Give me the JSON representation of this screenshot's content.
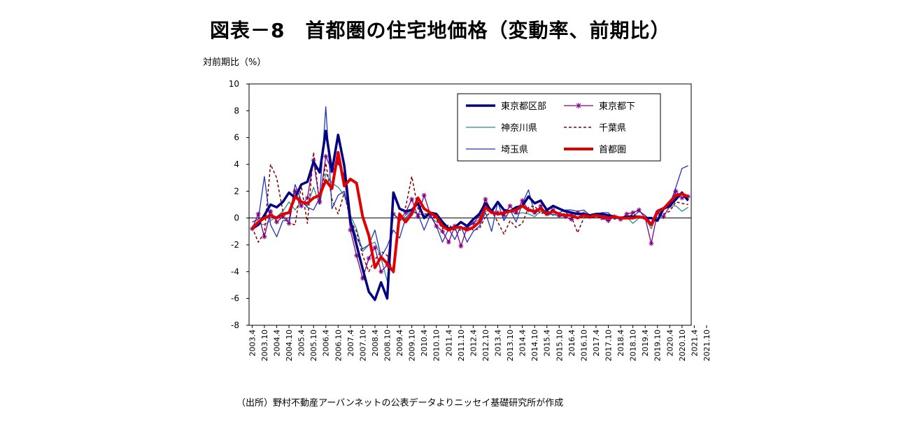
{
  "title": "図表－8　首都圏の住宅地価格（変動率、前期比）",
  "source": "（出所）野村不動産アーバンネットの公表データよりニッセイ基礎研究所が作成",
  "chart_data": {
    "type": "line",
    "ylabel": "対前期比（%）",
    "xlabel": "",
    "ylim": [
      -8,
      10
    ],
    "yticks": [
      10,
      8,
      6,
      4,
      2,
      0,
      -2,
      -4,
      -6,
      -8
    ],
    "x_tick_labels": [
      "2003.4",
      "2003.10",
      "2004.4",
      "2004.10",
      "2005.4",
      "2005.10",
      "2006.4",
      "2006.10",
      "2007.4",
      "2007.10",
      "2008.4",
      "2008.10",
      "2009.4",
      "2009.10",
      "2010.4",
      "2010.10",
      "2011.4",
      "2011.10",
      "2012.4",
      "2012.10",
      "2013.4",
      "2013.10",
      "2014.4",
      "2014.10",
      "2015.4",
      "2015.10",
      "2016.4",
      "2016.10",
      "2017.4",
      "2017.10",
      "2018.4",
      "2018.10",
      "2019.4",
      "2019.10",
      "2020.4",
      "2020.10",
      "2021.4",
      "2021.10"
    ],
    "x_start": "2003-04",
    "x_step_months": 3,
    "grid": false,
    "legend_position": "top-right",
    "series": [
      {
        "name": "東京都区部",
        "color": "#000080",
        "style": "thick",
        "values": [
          -0.8,
          -0.5,
          0.2,
          1.0,
          0.8,
          1.2,
          1.9,
          1.5,
          2.5,
          2.7,
          4.2,
          3.4,
          6.5,
          3.5,
          6.2,
          3.9,
          -0.2,
          -2.0,
          -3.8,
          -5.5,
          -6.1,
          -4.8,
          -6.0,
          1.9,
          0.7,
          0.5,
          0.6,
          1.1,
          0.0,
          0.4,
          0.3,
          -0.3,
          -0.8,
          -0.7,
          -0.3,
          -0.6,
          -0.1,
          0.3,
          1.1,
          0.5,
          1.2,
          0.6,
          0.5,
          0.8,
          0.9,
          1.6,
          1.1,
          1.3,
          0.6,
          0.9,
          0.7,
          0.5,
          0.4,
          0.3,
          0.3,
          0.2,
          0.3,
          0.3,
          0.2,
          0.1,
          0.0,
          0.1,
          0.1,
          0.1,
          0.0,
          0.0,
          -0.2,
          0.7,
          0.9,
          1.4,
          1.9,
          1.3
        ]
      },
      {
        "name": "東京都下",
        "color": "#800080",
        "style": "star",
        "values": [
          -0.8,
          0.3,
          -1.4,
          0.5,
          -0.3,
          0.1,
          -0.4,
          2.0,
          0.9,
          1.5,
          4.3,
          1.2,
          4.6,
          3.5,
          4.1,
          3.2,
          -0.9,
          -2.8,
          -4.5,
          -3.0,
          -2.2,
          -4.0,
          -3.5,
          0.3,
          -0.1,
          0.4,
          1.4,
          0.1,
          1.7,
          0.3,
          -0.6,
          -1.0,
          -1.8,
          -0.6,
          -2.1,
          -0.7,
          -0.4,
          0.2,
          1.4,
          0.5,
          0.4,
          0.2,
          0.9,
          0.4,
          1.3,
          0.6,
          0.4,
          0.9,
          0.3,
          0.6,
          0.2,
          0.1,
          -0.1,
          0.4,
          0.3,
          0.1,
          0.2,
          0.0,
          -0.2,
          0.1,
          -0.1,
          0.3,
          0.4,
          0.6,
          0.0,
          -1.9,
          0.4,
          0.1,
          0.9,
          2.0,
          1.5,
          1.6
        ]
      },
      {
        "name": "神奈川県",
        "color": "#2E8B8B",
        "style": "thin",
        "values": [
          -0.6,
          -0.4,
          -0.5,
          -0.2,
          0.1,
          0.5,
          1.2,
          0.6,
          1.3,
          0.9,
          2.3,
          1.0,
          3.3,
          2.6,
          2.3,
          1.7,
          0.2,
          -0.8,
          -2.5,
          -2.0,
          -1.8,
          -3.0,
          -4.7,
          0.3,
          -0.2,
          0.2,
          0.6,
          0.3,
          0.2,
          0.1,
          -0.3,
          -0.5,
          -0.7,
          -0.7,
          -0.8,
          -0.6,
          -0.4,
          -0.1,
          0.5,
          0.6,
          0.2,
          0.3,
          0.5,
          0.3,
          0.4,
          0.3,
          0.1,
          0.5,
          0.2,
          0.3,
          0.1,
          0.2,
          0.1,
          0.0,
          0.1,
          0.1,
          0.2,
          0.0,
          0.1,
          0.0,
          0.0,
          0.1,
          -0.4,
          0.0,
          0.0,
          -0.8,
          0.3,
          0.6,
          0.9,
          0.9,
          0.5,
          0.8
        ]
      },
      {
        "name": "千葉県",
        "color": "#800000",
        "style": "dashed",
        "values": [
          -0.7,
          -1.8,
          -1.1,
          4.0,
          3.0,
          0.5,
          -0.4,
          -0.5,
          2.4,
          -0.4,
          4.9,
          1.1,
          4.1,
          1.4,
          0.3,
          1.9,
          -0.2,
          -1.0,
          -2.8,
          -4.0,
          -3.1,
          -2.5,
          -2.8,
          -4.1,
          0.4,
          0.8,
          3.1,
          0.7,
          0.3,
          0.3,
          -0.1,
          -0.8,
          -0.5,
          -0.9,
          -0.9,
          -0.6,
          -0.9,
          -0.8,
          0.1,
          0.5,
          -0.3,
          -1.2,
          -0.2,
          -0.7,
          -0.4,
          0.8,
          0.9,
          0.3,
          0.5,
          0.6,
          0.1,
          0.4,
          0.1,
          -1.1,
          0.0,
          0.1,
          0.0,
          0.1,
          0.0,
          0.2,
          0.0,
          0.0,
          0.3,
          0.0,
          0.0,
          -0.3,
          0.2,
          0.3,
          0.5,
          1.2,
          1.1,
          1.0
        ]
      },
      {
        "name": "埼玉県",
        "color": "#2233BB",
        "style": "thin",
        "values": [
          -0.3,
          -0.1,
          3.1,
          -0.5,
          -1.4,
          -0.2,
          -0.2,
          2.5,
          1.3,
          0.8,
          0.6,
          1.5,
          8.3,
          0.7,
          1.7,
          2.0,
          0.0,
          -1.5,
          -2.3,
          -2.0,
          -0.9,
          -2.9,
          -2.1,
          -0.9,
          -1.5,
          0.0,
          0.5,
          0.3,
          -0.9,
          0.2,
          -0.6,
          -1.8,
          -0.8,
          -1.6,
          -0.6,
          -1.8,
          -1.0,
          -0.6,
          0.4,
          -1.0,
          1.2,
          -0.2,
          0.6,
          -0.3,
          1.1,
          2.1,
          0.3,
          0.7,
          0.5,
          0.2,
          0.4,
          0.6,
          0.6,
          0.5,
          0.6,
          0.2,
          0.3,
          0.4,
          0.4,
          -0.1,
          0.1,
          0.0,
          0.1,
          0.5,
          0.2,
          -0.4,
          0.6,
          0.8,
          1.0,
          2.3,
          3.7,
          3.9
        ]
      },
      {
        "name": "首都圏",
        "color": "#E00000",
        "style": "thick-red",
        "values": [
          -0.8,
          -0.3,
          0.0,
          0.2,
          0.0,
          0.3,
          0.4,
          1.6,
          1.2,
          1.1,
          1.5,
          1.7,
          2.8,
          2.2,
          4.9,
          2.4,
          2.9,
          2.6,
          0.1,
          -1.3,
          -3.7,
          -2.9,
          -3.4,
          -4.0,
          0.3,
          -0.3,
          0.3,
          1.5,
          0.7,
          0.4,
          0.1,
          -0.6,
          -0.9,
          -0.7,
          -0.7,
          -0.9,
          -0.7,
          -0.3,
          0.8,
          0.4,
          0.3,
          0.4,
          0.5,
          0.6,
          0.9,
          0.6,
          0.5,
          0.7,
          0.3,
          0.5,
          0.3,
          0.2,
          0.2,
          0.0,
          0.2,
          0.1,
          0.2,
          0.1,
          0.0,
          0.1,
          0.0,
          0.0,
          0.0,
          0.1,
          0.0,
          -0.5,
          0.5,
          0.7,
          1.2,
          1.7,
          1.8,
          1.6
        ]
      }
    ]
  }
}
